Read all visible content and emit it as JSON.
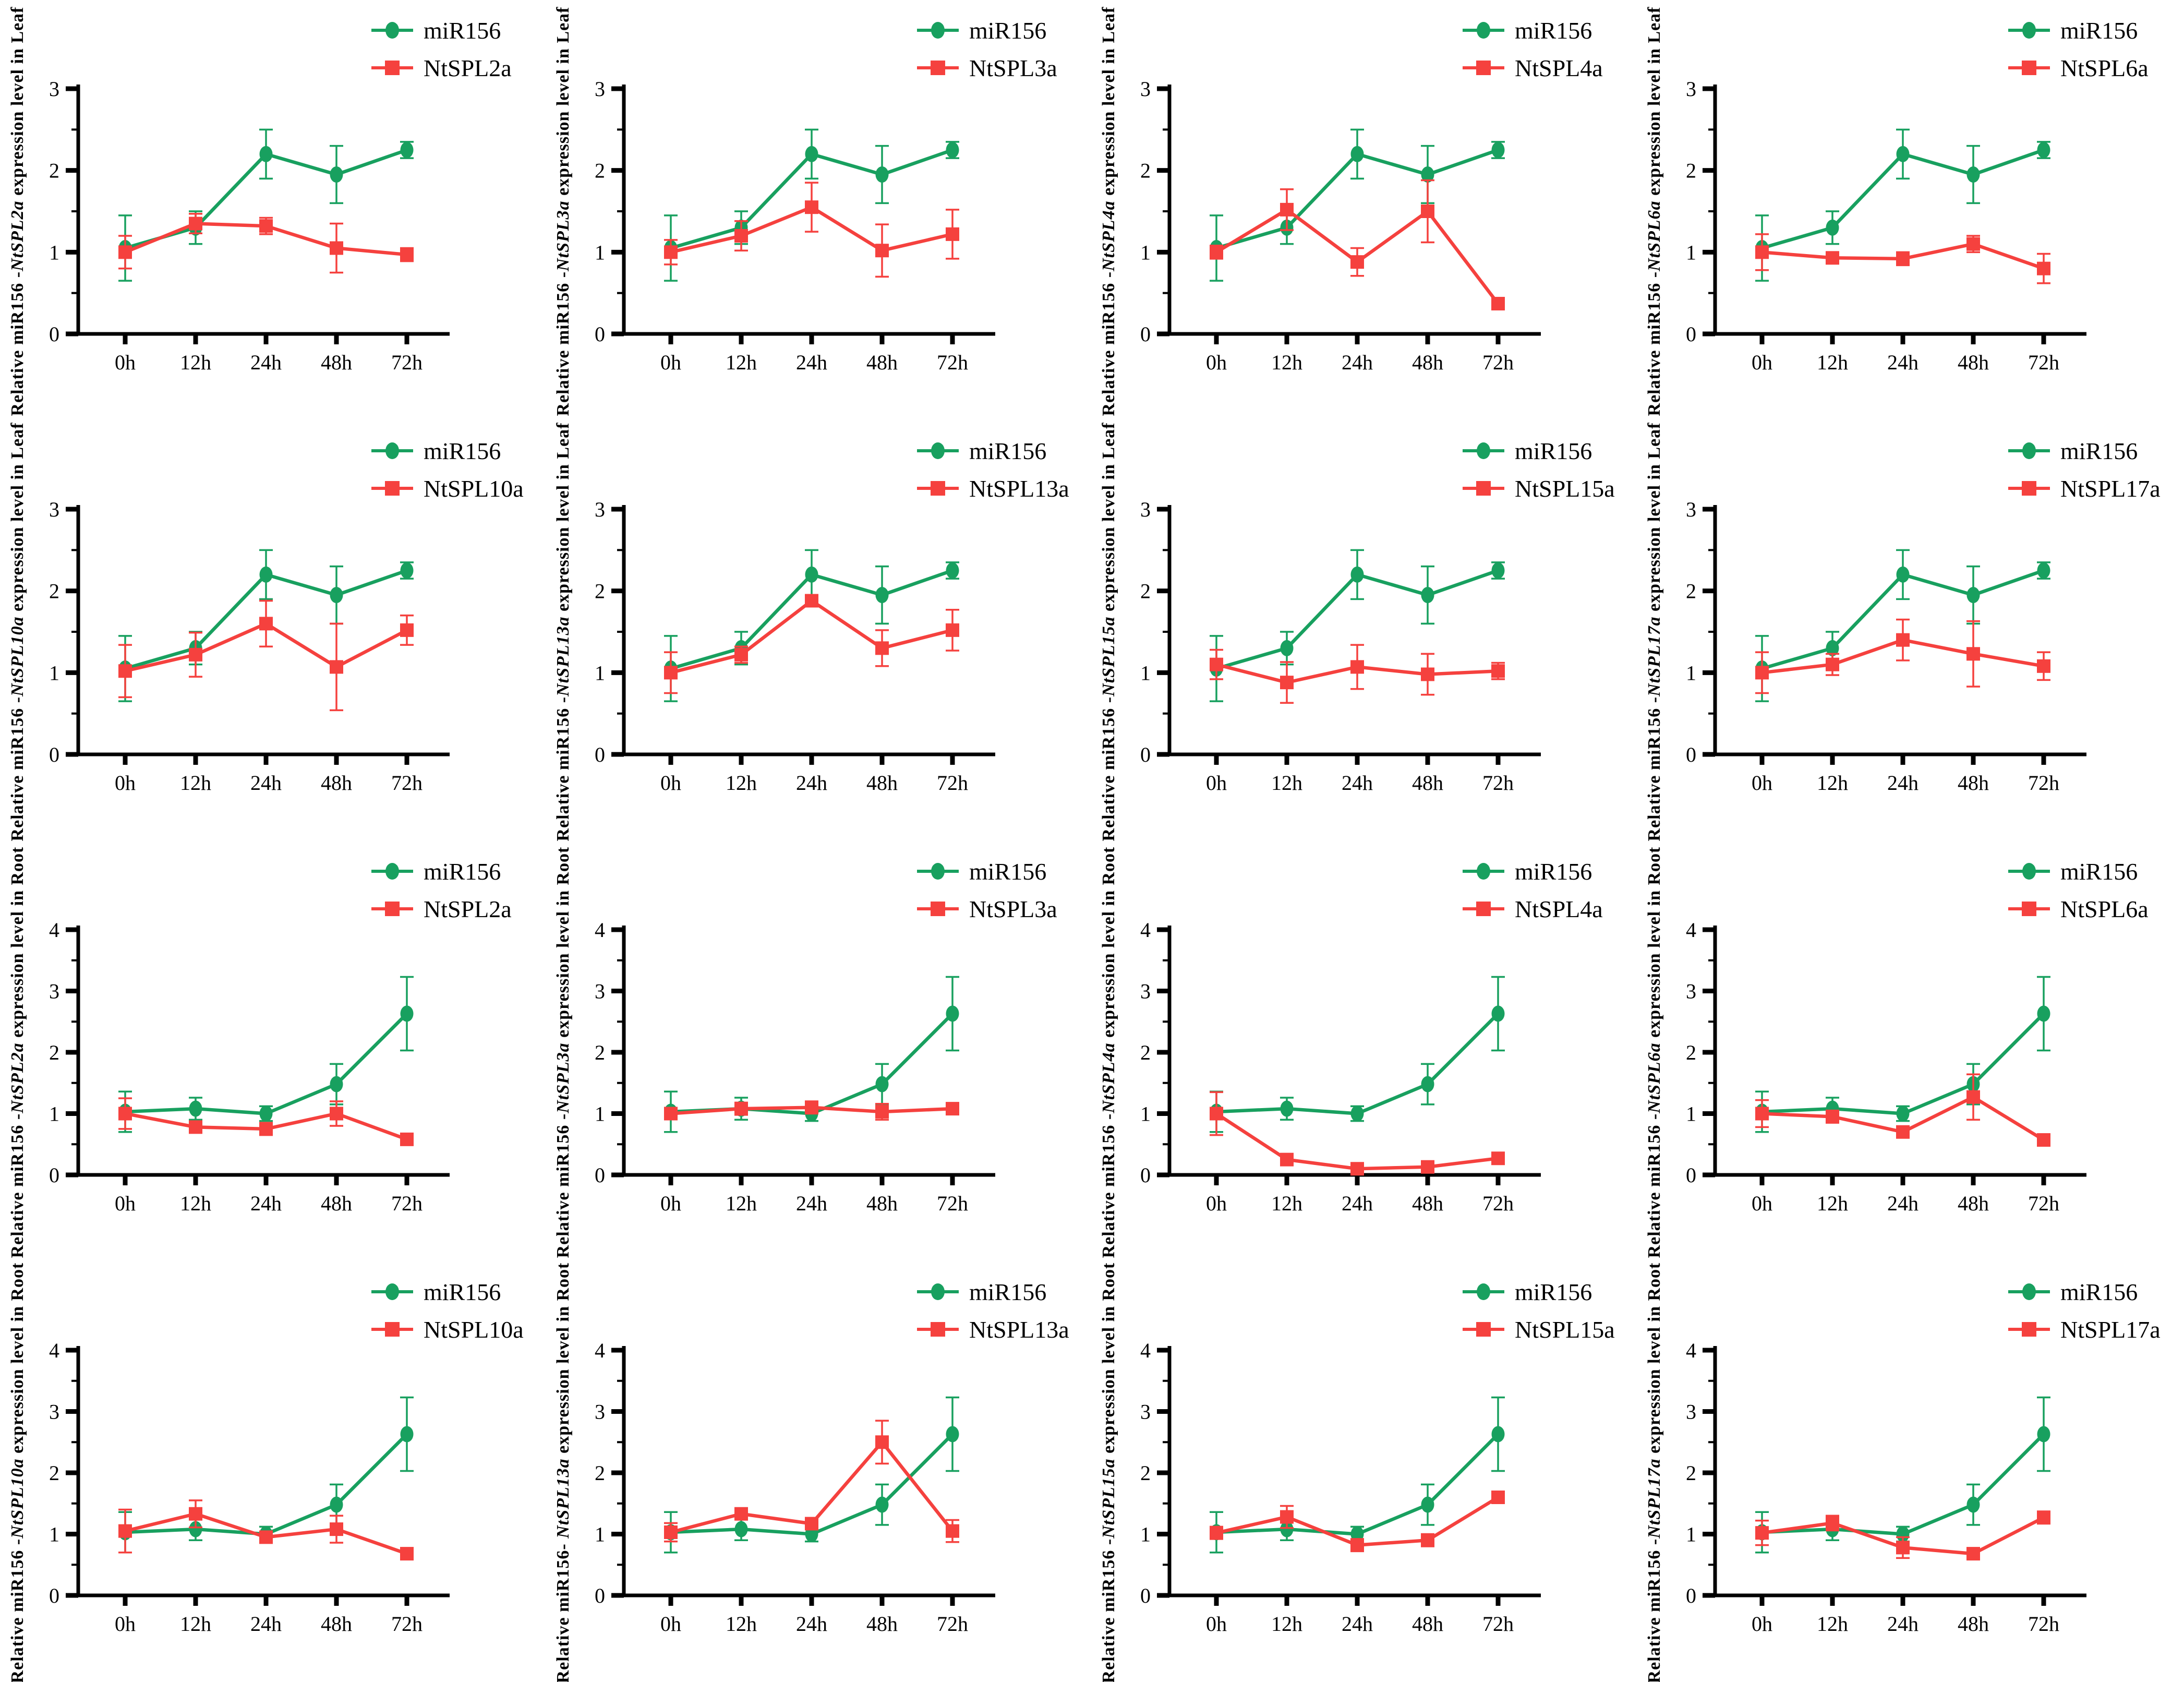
{
  "figure": {
    "description": "4x4 grid of qRT-PCR time-course line charts comparing miR156 and NtSPL gene expression in Leaf and Root",
    "background": "#ffffff",
    "axis_color": "#000000",
    "text_color": "#000000"
  },
  "colors": {
    "mir156_green": "#18A05F",
    "ntspl_red": "#F5413E"
  },
  "x_categories": [
    "0h",
    "12h",
    "24h",
    "48h",
    "72h"
  ],
  "legend": {
    "first_label": "miR156",
    "marker_first": "circle",
    "marker_second": "square"
  },
  "chart_data": [
    {
      "type": "line",
      "tissue": "Leaf",
      "gene": "NtSPL2a",
      "ylabel_prefix": "Relative miR156 -",
      "ylabel_gene": "NtSPL2a",
      "ylabel_suffix": " expression level in Leaf",
      "ylim": [
        0,
        3
      ],
      "yticks": [
        0,
        1,
        2,
        3
      ],
      "x": [
        "0h",
        "12h",
        "24h",
        "48h",
        "72h"
      ],
      "series": [
        {
          "name": "miR156",
          "marker": "circle",
          "color": "#18A05F",
          "values": [
            1.05,
            1.3,
            2.2,
            1.95,
            2.25
          ],
          "errors": [
            0.4,
            0.2,
            0.3,
            0.35,
            0.1
          ]
        },
        {
          "name": "NtSPL2a",
          "marker": "square",
          "color": "#F5413E",
          "values": [
            1.0,
            1.35,
            1.32,
            1.05,
            0.97
          ],
          "errors": [
            0.2,
            0.12,
            0.1,
            0.3,
            0.08
          ]
        }
      ]
    },
    {
      "type": "line",
      "tissue": "Leaf",
      "gene": "NtSPL3a",
      "ylabel_prefix": "Relative miR156 -",
      "ylabel_gene": "NtSPL3a",
      "ylabel_suffix": " expression level in Leaf",
      "ylim": [
        0,
        3
      ],
      "yticks": [
        0,
        1,
        2,
        3
      ],
      "x": [
        "0h",
        "12h",
        "24h",
        "48h",
        "72h"
      ],
      "series": [
        {
          "name": "miR156",
          "marker": "circle",
          "color": "#18A05F",
          "values": [
            1.05,
            1.3,
            2.2,
            1.95,
            2.25
          ],
          "errors": [
            0.4,
            0.2,
            0.3,
            0.35,
            0.1
          ]
        },
        {
          "name": "NtSPL3a",
          "marker": "square",
          "color": "#F5413E",
          "values": [
            1.0,
            1.2,
            1.55,
            1.02,
            1.22
          ],
          "errors": [
            0.15,
            0.18,
            0.3,
            0.32,
            0.3
          ]
        }
      ]
    },
    {
      "type": "line",
      "tissue": "Leaf",
      "gene": "NtSPL4a",
      "ylabel_prefix": "Relative miR156 -",
      "ylabel_gene": "NtSPL4a",
      "ylabel_suffix": " expression level in Leaf",
      "ylim": [
        0,
        3
      ],
      "yticks": [
        0,
        1,
        2,
        3
      ],
      "x": [
        "0h",
        "12h",
        "24h",
        "48h",
        "72h"
      ],
      "series": [
        {
          "name": "miR156",
          "marker": "circle",
          "color": "#18A05F",
          "values": [
            1.05,
            1.3,
            2.2,
            1.95,
            2.25
          ],
          "errors": [
            0.4,
            0.2,
            0.3,
            0.35,
            0.1
          ]
        },
        {
          "name": "NtSPL4a",
          "marker": "square",
          "color": "#F5413E",
          "values": [
            1.0,
            1.52,
            0.88,
            1.5,
            0.37
          ],
          "errors": [
            0.08,
            0.25,
            0.17,
            0.38,
            0.06
          ]
        }
      ]
    },
    {
      "type": "line",
      "tissue": "Leaf",
      "gene": "NtSPL6a",
      "ylabel_prefix": "Relative miR156 -",
      "ylabel_gene": "NtSPL6a",
      "ylabel_suffix": " expression level in Leaf",
      "ylim": [
        0,
        3
      ],
      "yticks": [
        0,
        1,
        2,
        3
      ],
      "x": [
        "0h",
        "12h",
        "24h",
        "48h",
        "72h"
      ],
      "series": [
        {
          "name": "miR156",
          "marker": "circle",
          "color": "#18A05F",
          "values": [
            1.05,
            1.3,
            2.2,
            1.95,
            2.25
          ],
          "errors": [
            0.4,
            0.2,
            0.3,
            0.35,
            0.1
          ]
        },
        {
          "name": "NtSPL6a",
          "marker": "square",
          "color": "#F5413E",
          "values": [
            1.0,
            0.93,
            0.92,
            1.1,
            0.8
          ],
          "errors": [
            0.22,
            0.06,
            0.08,
            0.1,
            0.18
          ]
        }
      ]
    },
    {
      "type": "line",
      "tissue": "Leaf",
      "gene": "NtSPL10a",
      "ylabel_prefix": "Relative miR156 -",
      "ylabel_gene": "NtSPL10a",
      "ylabel_suffix": " expression level in Leaf",
      "ylim": [
        0,
        3
      ],
      "yticks": [
        0,
        1,
        2,
        3
      ],
      "x": [
        "0h",
        "12h",
        "24h",
        "48h",
        "72h"
      ],
      "series": [
        {
          "name": "miR156",
          "marker": "circle",
          "color": "#18A05F",
          "values": [
            1.05,
            1.3,
            2.2,
            1.95,
            2.25
          ],
          "errors": [
            0.4,
            0.2,
            0.3,
            0.35,
            0.1
          ]
        },
        {
          "name": "NtSPL10a",
          "marker": "square",
          "color": "#F5413E",
          "values": [
            1.02,
            1.22,
            1.6,
            1.07,
            1.52
          ],
          "errors": [
            0.32,
            0.27,
            0.28,
            0.53,
            0.18
          ]
        }
      ]
    },
    {
      "type": "line",
      "tissue": "Leaf",
      "gene": "NtSPL13a",
      "ylabel_prefix": "Relative miR156 -",
      "ylabel_gene": "NtSPL13a",
      "ylabel_suffix": " expression level in Leaf",
      "ylim": [
        0,
        3
      ],
      "yticks": [
        0,
        1,
        2,
        3
      ],
      "x": [
        "0h",
        "12h",
        "24h",
        "48h",
        "72h"
      ],
      "series": [
        {
          "name": "miR156",
          "marker": "circle",
          "color": "#18A05F",
          "values": [
            1.05,
            1.3,
            2.2,
            1.95,
            2.25
          ],
          "errors": [
            0.4,
            0.2,
            0.3,
            0.35,
            0.1
          ]
        },
        {
          "name": "NtSPL13a",
          "marker": "square",
          "color": "#F5413E",
          "values": [
            1.0,
            1.22,
            1.88,
            1.3,
            1.52
          ],
          "errors": [
            0.25,
            0.1,
            0.07,
            0.22,
            0.25
          ]
        }
      ]
    },
    {
      "type": "line",
      "tissue": "Leaf",
      "gene": "NtSPL15a",
      "ylabel_prefix": "Relative miR156 -",
      "ylabel_gene": "NtSPL15a",
      "ylabel_suffix": " expression level in Leaf",
      "ylim": [
        0,
        3
      ],
      "yticks": [
        0,
        1,
        2,
        3
      ],
      "x": [
        "0h",
        "12h",
        "24h",
        "48h",
        "72h"
      ],
      "series": [
        {
          "name": "miR156",
          "marker": "circle",
          "color": "#18A05F",
          "values": [
            1.05,
            1.3,
            2.2,
            1.95,
            2.25
          ],
          "errors": [
            0.4,
            0.2,
            0.3,
            0.35,
            0.1
          ]
        },
        {
          "name": "NtSPL15a",
          "marker": "square",
          "color": "#F5413E",
          "values": [
            1.1,
            0.88,
            1.07,
            0.98,
            1.02
          ],
          "errors": [
            0.18,
            0.25,
            0.27,
            0.25,
            0.1
          ]
        }
      ]
    },
    {
      "type": "line",
      "tissue": "Leaf",
      "gene": "NtSPL17a",
      "ylabel_prefix": "Relative miR156 -",
      "ylabel_gene": "NtSPL17a",
      "ylabel_suffix": " expression level in Leaf",
      "ylim": [
        0,
        3
      ],
      "yticks": [
        0,
        1,
        2,
        3
      ],
      "x": [
        "0h",
        "12h",
        "24h",
        "48h",
        "72h"
      ],
      "series": [
        {
          "name": "miR156",
          "marker": "circle",
          "color": "#18A05F",
          "values": [
            1.05,
            1.3,
            2.2,
            1.95,
            2.25
          ],
          "errors": [
            0.4,
            0.2,
            0.3,
            0.35,
            0.1
          ]
        },
        {
          "name": "NtSPL17a",
          "marker": "square",
          "color": "#F5413E",
          "values": [
            1.0,
            1.1,
            1.4,
            1.23,
            1.08
          ],
          "errors": [
            0.25,
            0.13,
            0.25,
            0.4,
            0.17
          ]
        }
      ]
    },
    {
      "type": "line",
      "tissue": "Root",
      "gene": "NtSPL2a",
      "ylabel_prefix": "Relative miR156 -",
      "ylabel_gene": "NtSPL2a",
      "ylabel_suffix": " expression level in Root",
      "ylim": [
        0,
        4
      ],
      "yticks": [
        0,
        1,
        2,
        3,
        4
      ],
      "x": [
        "0h",
        "12h",
        "24h",
        "48h",
        "72h"
      ],
      "series": [
        {
          "name": "miR156",
          "marker": "circle",
          "color": "#18A05F",
          "values": [
            1.03,
            1.08,
            1.0,
            1.48,
            2.63
          ],
          "errors": [
            0.33,
            0.18,
            0.12,
            0.33,
            0.6
          ]
        },
        {
          "name": "NtSPL2a",
          "marker": "square",
          "color": "#F5413E",
          "values": [
            1.0,
            0.78,
            0.75,
            1.0,
            0.58
          ],
          "errors": [
            0.25,
            0.07,
            0.1,
            0.2,
            0.05
          ]
        }
      ]
    },
    {
      "type": "line",
      "tissue": "Root",
      "gene": "NtSPL3a",
      "ylabel_prefix": "Relative miR156 -",
      "ylabel_gene": "NtSPL3a",
      "ylabel_suffix": " expression level in Root",
      "ylim": [
        0,
        4
      ],
      "yticks": [
        0,
        1,
        2,
        3,
        4
      ],
      "x": [
        "0h",
        "12h",
        "24h",
        "48h",
        "72h"
      ],
      "series": [
        {
          "name": "miR156",
          "marker": "circle",
          "color": "#18A05F",
          "values": [
            1.03,
            1.08,
            1.0,
            1.48,
            2.63
          ],
          "errors": [
            0.33,
            0.18,
            0.12,
            0.33,
            0.6
          ]
        },
        {
          "name": "NtSPL3a",
          "marker": "square",
          "color": "#F5413E",
          "values": [
            1.0,
            1.08,
            1.1,
            1.03,
            1.08
          ],
          "errors": [
            0.07,
            0.1,
            0.1,
            0.13,
            0.08
          ]
        }
      ]
    },
    {
      "type": "line",
      "tissue": "Root",
      "gene": "NtSPL4a",
      "ylabel_prefix": "Relative miR156 -",
      "ylabel_gene": "NtSPL4a",
      "ylabel_suffix": " expression level in Root",
      "ylim": [
        0,
        4
      ],
      "yticks": [
        0,
        1,
        2,
        3,
        4
      ],
      "x": [
        "0h",
        "12h",
        "24h",
        "48h",
        "72h"
      ],
      "series": [
        {
          "name": "miR156",
          "marker": "circle",
          "color": "#18A05F",
          "values": [
            1.03,
            1.08,
            1.0,
            1.48,
            2.63
          ],
          "errors": [
            0.33,
            0.18,
            0.12,
            0.33,
            0.6
          ]
        },
        {
          "name": "NtSPL4a",
          "marker": "square",
          "color": "#F5413E",
          "values": [
            1.0,
            0.25,
            0.1,
            0.13,
            0.27
          ],
          "errors": [
            0.35,
            0.05,
            0.07,
            0.05,
            0.05
          ]
        }
      ]
    },
    {
      "type": "line",
      "tissue": "Root",
      "gene": "NtSPL6a",
      "ylabel_prefix": "Relative miR156 -",
      "ylabel_gene": "NtSPL6a",
      "ylabel_suffix": " expression level in Root",
      "ylim": [
        0,
        4
      ],
      "yticks": [
        0,
        1,
        2,
        3,
        4
      ],
      "x": [
        "0h",
        "12h",
        "24h",
        "48h",
        "72h"
      ],
      "series": [
        {
          "name": "miR156",
          "marker": "circle",
          "color": "#18A05F",
          "values": [
            1.03,
            1.08,
            1.0,
            1.48,
            2.63
          ],
          "errors": [
            0.33,
            0.18,
            0.12,
            0.33,
            0.6
          ]
        },
        {
          "name": "NtSPL6a",
          "marker": "square",
          "color": "#F5413E",
          "values": [
            1.0,
            0.95,
            0.7,
            1.27,
            0.57
          ],
          "errors": [
            0.22,
            0.1,
            0.07,
            0.37,
            0.05
          ]
        }
      ]
    },
    {
      "type": "line",
      "tissue": "Root",
      "gene": "NtSPL10a",
      "ylabel_prefix": "Relative miR156 -",
      "ylabel_gene": "NtSPL10a",
      "ylabel_suffix": " expression level in Root",
      "ylim": [
        0,
        4
      ],
      "yticks": [
        0,
        1,
        2,
        3,
        4
      ],
      "x": [
        "0h",
        "12h",
        "24h",
        "48h",
        "72h"
      ],
      "series": [
        {
          "name": "miR156",
          "marker": "circle",
          "color": "#18A05F",
          "values": [
            1.03,
            1.08,
            1.0,
            1.48,
            2.63
          ],
          "errors": [
            0.33,
            0.18,
            0.12,
            0.33,
            0.6
          ]
        },
        {
          "name": "NtSPL10a",
          "marker": "square",
          "color": "#F5413E",
          "values": [
            1.05,
            1.33,
            0.95,
            1.08,
            0.68
          ],
          "errors": [
            0.35,
            0.22,
            0.07,
            0.22,
            0.05
          ]
        }
      ]
    },
    {
      "type": "line",
      "tissue": "Root",
      "gene": "NtSPL13a",
      "ylabel_prefix": "Relative miR156- ",
      "ylabel_gene": "NtSPL13a",
      "ylabel_suffix": " expression level in Root",
      "ylim": [
        0,
        4
      ],
      "yticks": [
        0,
        1,
        2,
        3,
        4
      ],
      "x": [
        "0h",
        "12h",
        "24h",
        "48h",
        "72h"
      ],
      "series": [
        {
          "name": "miR156",
          "marker": "circle",
          "color": "#18A05F",
          "values": [
            1.03,
            1.08,
            1.0,
            1.48,
            2.63
          ],
          "errors": [
            0.33,
            0.18,
            0.12,
            0.33,
            0.6
          ]
        },
        {
          "name": "NtSPL13a",
          "marker": "square",
          "color": "#F5413E",
          "values": [
            1.03,
            1.33,
            1.17,
            2.5,
            1.05
          ],
          "errors": [
            0.15,
            0.07,
            0.05,
            0.35,
            0.18
          ]
        }
      ]
    },
    {
      "type": "line",
      "tissue": "Root",
      "gene": "NtSPL15a",
      "ylabel_prefix": "Relative miR156 -",
      "ylabel_gene": "NtSPL15a",
      "ylabel_suffix": " expression level in Root",
      "ylim": [
        0,
        4
      ],
      "yticks": [
        0,
        1,
        2,
        3,
        4
      ],
      "x": [
        "0h",
        "12h",
        "24h",
        "48h",
        "72h"
      ],
      "series": [
        {
          "name": "miR156",
          "marker": "circle",
          "color": "#18A05F",
          "values": [
            1.03,
            1.08,
            1.0,
            1.48,
            2.63
          ],
          "errors": [
            0.33,
            0.18,
            0.12,
            0.33,
            0.6
          ]
        },
        {
          "name": "NtSPL15a",
          "marker": "square",
          "color": "#F5413E",
          "values": [
            1.02,
            1.28,
            0.82,
            0.9,
            1.6
          ],
          "errors": [
            0.1,
            0.18,
            0.1,
            0.1,
            0.06
          ]
        }
      ]
    },
    {
      "type": "line",
      "tissue": "Root",
      "gene": "NtSPL17a",
      "ylabel_prefix": "Relative miR156 -",
      "ylabel_gene": "NtSPL17a",
      "ylabel_suffix": " expression level in Root",
      "ylim": [
        0,
        4
      ],
      "yticks": [
        0,
        1,
        2,
        3,
        4
      ],
      "x": [
        "0h",
        "12h",
        "24h",
        "48h",
        "72h"
      ],
      "series": [
        {
          "name": "miR156",
          "marker": "circle",
          "color": "#18A05F",
          "values": [
            1.03,
            1.08,
            1.0,
            1.48,
            2.63
          ],
          "errors": [
            0.33,
            0.18,
            0.12,
            0.33,
            0.6
          ]
        },
        {
          "name": "NtSPL17a",
          "marker": "square",
          "color": "#F5413E",
          "values": [
            1.02,
            1.18,
            0.78,
            0.68,
            1.27
          ],
          "errors": [
            0.2,
            0.12,
            0.17,
            0.06,
            0.1
          ]
        }
      ]
    }
  ]
}
